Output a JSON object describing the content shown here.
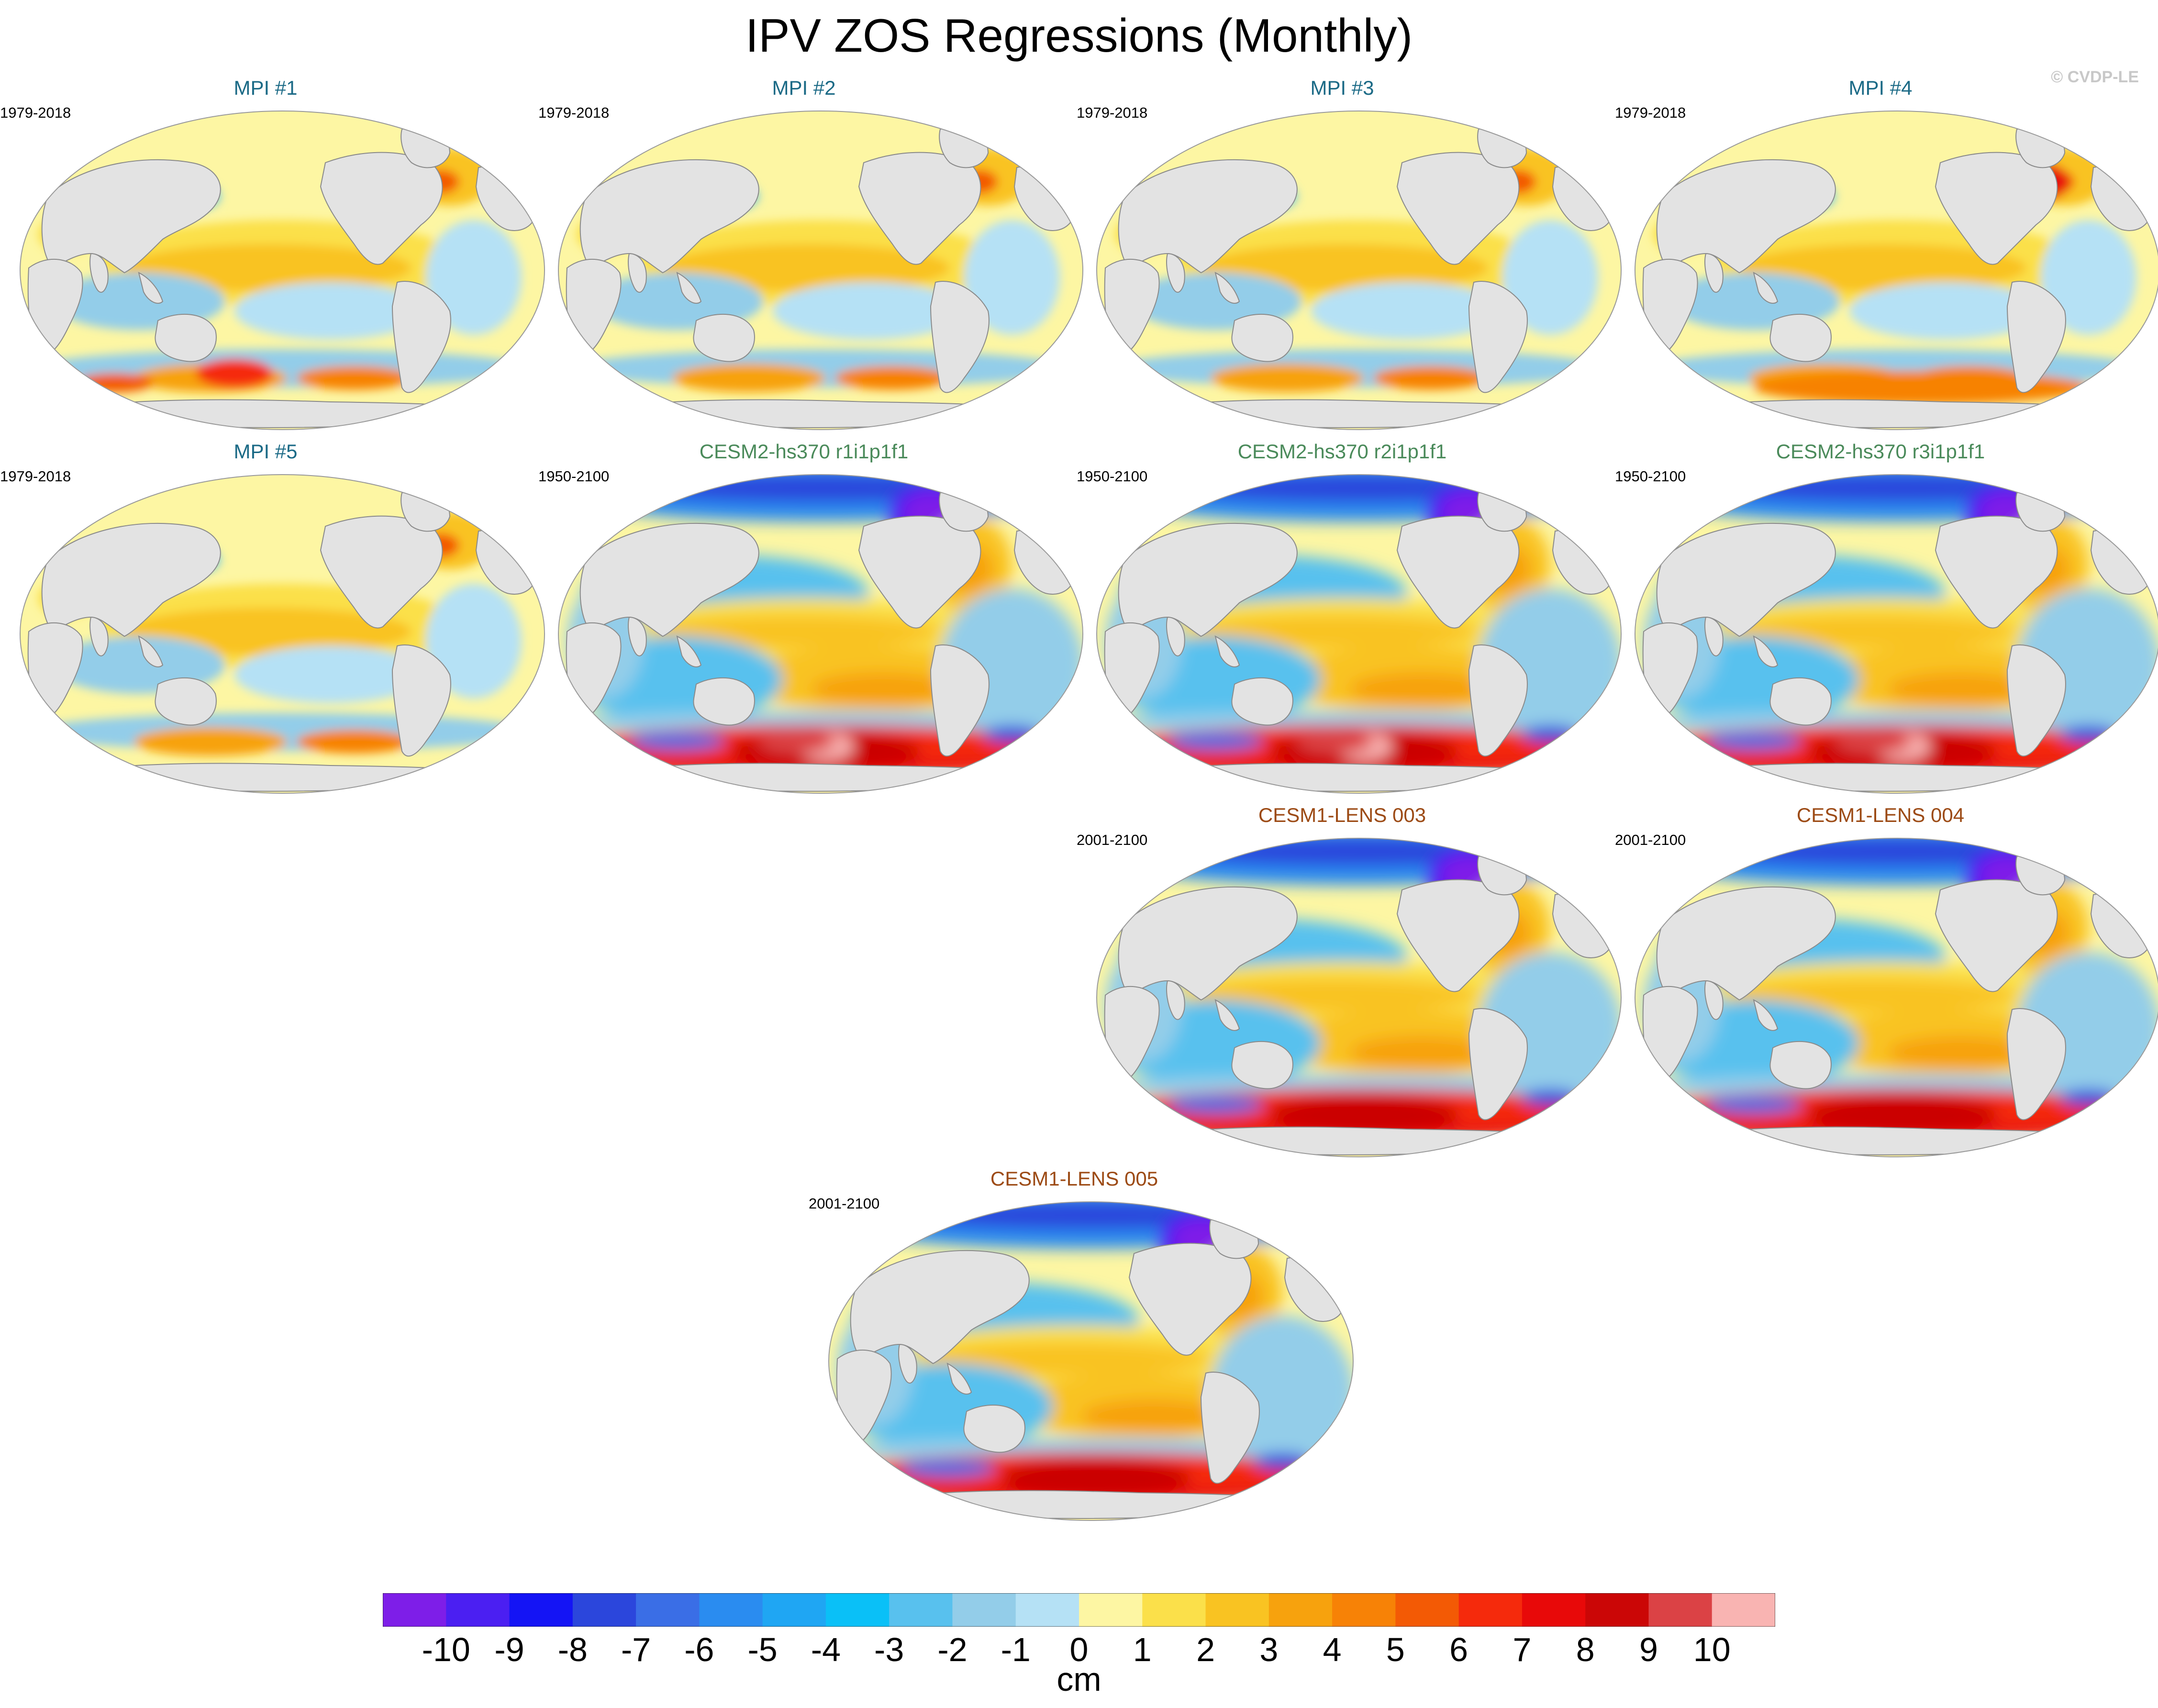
{
  "figure": {
    "title": "IPV ZOS Regressions (Monthly)",
    "credit": "© CVDP-LE"
  },
  "colors": {
    "mpi_title": "#1b6a86",
    "cesm2_title": "#4a8a5a",
    "cesm1_title": "#9c4a14",
    "land": "#e3e3e3",
    "coast": "#8a8a8a"
  },
  "panels": [
    {
      "title": "MPI #1",
      "period": "1979-2018",
      "group": "mpi"
    },
    {
      "title": "MPI #2",
      "period": "1979-2018",
      "group": "mpi"
    },
    {
      "title": "MPI #3",
      "period": "1979-2018",
      "group": "mpi"
    },
    {
      "title": "MPI #4",
      "period": "1979-2018",
      "group": "mpi"
    },
    {
      "title": "MPI #5",
      "period": "1979-2018",
      "group": "mpi"
    },
    {
      "title": "CESM2-hs370 r1i1p1f1",
      "period": "1950-2100",
      "group": "cesm2"
    },
    {
      "title": "CESM2-hs370 r2i1p1f1",
      "period": "1950-2100",
      "group": "cesm2"
    },
    {
      "title": "CESM2-hs370 r3i1p1f1",
      "period": "1950-2100",
      "group": "cesm2"
    },
    {
      "title": "CESM1-LENS 003",
      "period": "2001-2100",
      "group": "cesm1"
    },
    {
      "title": "CESM1-LENS 004",
      "period": "2001-2100",
      "group": "cesm1"
    },
    {
      "title": "CESM1-LENS 005",
      "period": "2001-2100",
      "group": "cesm1"
    }
  ],
  "chart_data": {
    "type": "heatmap",
    "title": "IPV ZOS Regressions (Monthly)",
    "projection": "Robinson, Pacific-centered global map",
    "colorbar": {
      "unit": "cm",
      "tick_labels": [
        "-10",
        "-9",
        "-8",
        "-7",
        "-6",
        "-5",
        "-4",
        "-3",
        "-2",
        "-1",
        "0",
        "1",
        "2",
        "3",
        "4",
        "5",
        "6",
        "7",
        "8",
        "9",
        "10"
      ],
      "colors": [
        "#7e1ee8",
        "#4b1ff2",
        "#1414f5",
        "#2b46dc",
        "#3a6ee6",
        "#2a8cf0",
        "#1fa6f3",
        "#0ac0f7",
        "#58c1ee",
        "#93cde9",
        "#b5e1f5",
        "#fdf6a3",
        "#fbe04a",
        "#f9c322",
        "#f7a20d",
        "#f78206",
        "#f35a05",
        "#f52a0c",
        "#e80909",
        "#cb0606",
        "#db4245",
        "#f9b4b2"
      ]
    },
    "maps": [
      {
        "model": "MPI #1",
        "period": "1979-2018",
        "pattern": "weak; positive central tropical Pacific, mixed Southern Ocean, positive North Atlantic"
      },
      {
        "model": "MPI #2",
        "period": "1979-2018",
        "pattern": "weak; positive central Pacific, negative NW Pacific"
      },
      {
        "model": "MPI #3",
        "period": "1979-2018",
        "pattern": "weak; positive central Pacific, negative NW Pacific"
      },
      {
        "model": "MPI #4",
        "period": "1979-2018",
        "pattern": "positive Pacific, positive Southern Ocean, positive North Atlantic"
      },
      {
        "model": "MPI #5",
        "period": "1979-2018",
        "pattern": "positive central Pacific, negative NW Pacific"
      },
      {
        "model": "CESM2-hs370 r1i1p1f1",
        "period": "1950-2100",
        "pattern": "strong positive Southern Ocean, strong negative Arctic, positive tropical bands"
      },
      {
        "model": "CESM2-hs370 r2i1p1f1",
        "period": "1950-2100",
        "pattern": "strong positive Southern Ocean, strong negative Arctic, positive tropical bands"
      },
      {
        "model": "CESM2-hs370 r3i1p1f1",
        "period": "1950-2100",
        "pattern": "strong positive Southern Ocean, strong negative Arctic, positive tropical bands"
      },
      {
        "model": "CESM1-LENS 003",
        "period": "2001-2100",
        "pattern": "strong positive Southern Ocean, negative Arctic, positive Pacific bands"
      },
      {
        "model": "CESM1-LENS 004",
        "period": "2001-2100",
        "pattern": "strong positive Southern Ocean, negative Arctic, positive Pacific bands"
      },
      {
        "model": "CESM1-LENS 005",
        "period": "2001-2100",
        "pattern": "strong positive Southern Ocean, negative Arctic, positive Pacific bands"
      }
    ]
  }
}
